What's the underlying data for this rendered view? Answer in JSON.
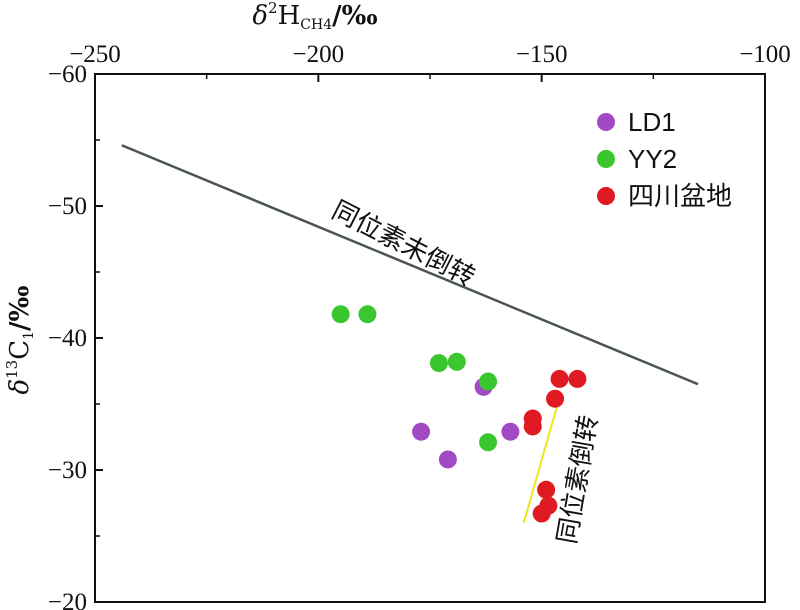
{
  "chart_data": {
    "type": "scatter",
    "x_axis": {
      "label": "δ²H_CH4/‰",
      "range": [
        -250,
        -100
      ],
      "ticks": [
        -250,
        -200,
        -150,
        -100
      ],
      "tick_labels": [
        "−250",
        "−200",
        "−150",
        "−100"
      ],
      "position": "top"
    },
    "y_axis": {
      "label": "δ¹³C₁/‰",
      "range": [
        -60,
        -20
      ],
      "ticks": [
        -60,
        -50,
        -40,
        -30,
        -20
      ],
      "tick_labels": [
        "−60",
        "−50",
        "−40",
        "−30",
        "−20"
      ],
      "inverted": true
    },
    "grid": false,
    "legend_position": "top-right",
    "series": [
      {
        "name": "LD1",
        "color": "#a249c4",
        "points": [
          {
            "x": -177,
            "y": -32.9
          },
          {
            "x": -171,
            "y": -30.8
          },
          {
            "x": -163,
            "y": -36.3
          },
          {
            "x": -157,
            "y": -32.9
          }
        ]
      },
      {
        "name": "YY2",
        "color": "#3ac62f",
        "points": [
          {
            "x": -195,
            "y": -41.8
          },
          {
            "x": -189,
            "y": -41.8
          },
          {
            "x": -173,
            "y": -38.1
          },
          {
            "x": -169,
            "y": -38.2
          },
          {
            "x": -162,
            "y": -36.7
          },
          {
            "x": -162,
            "y": -32.1
          }
        ]
      },
      {
        "name": "四川盆地",
        "color": "#e01a22",
        "points": [
          {
            "x": -152,
            "y": -33.9
          },
          {
            "x": -152,
            "y": -33.3
          },
          {
            "x": -146,
            "y": -36.9
          },
          {
            "x": -147,
            "y": -35.4
          },
          {
            "x": -142,
            "y": -36.9
          },
          {
            "x": -149,
            "y": -28.5
          },
          {
            "x": -148.5,
            "y": -27.3
          },
          {
            "x": -150,
            "y": -26.7
          }
        ]
      }
    ],
    "lines": [
      {
        "id": "reversal-boundary",
        "color": "#4a5550",
        "from": {
          "x": -244,
          "y": -54.6
        },
        "to": {
          "x": -115,
          "y": -36.5
        }
      },
      {
        "id": "reversal-trend",
        "color": "#f2e41c",
        "from": {
          "x": -154,
          "y": -26.0
        },
        "to": {
          "x": -146,
          "y": -35.5
        }
      }
    ],
    "annotations": [
      {
        "id": "boundary-label",
        "text": "同位素未倒转"
      },
      {
        "id": "trend-label",
        "text": "同位素倒转"
      }
    ]
  }
}
